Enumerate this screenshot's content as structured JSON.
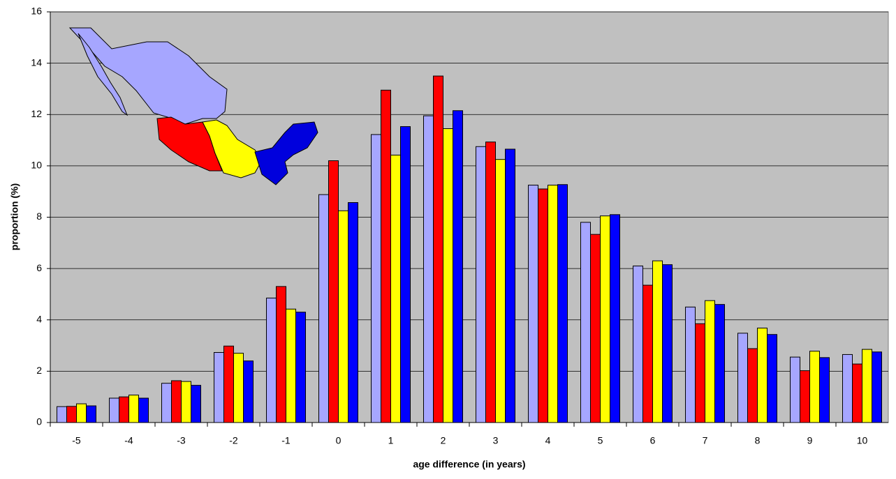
{
  "chart_data": {
    "type": "bar",
    "xlabel": "age difference (in years)",
    "ylabel": "proportion (%)",
    "categories": [
      "-5",
      "-4",
      "-3",
      "-2",
      "-1",
      "0",
      "1",
      "2",
      "3",
      "4",
      "5",
      "6",
      "7",
      "8",
      "9",
      "10"
    ],
    "series": [
      {
        "color": "#a6a6ff",
        "values": [
          0.62,
          0.95,
          1.53,
          2.73,
          4.85,
          8.88,
          11.22,
          11.95,
          10.75,
          9.25,
          7.8,
          6.1,
          4.5,
          3.48,
          2.55,
          2.65
        ]
      },
      {
        "color": "#ff0000",
        "values": [
          0.63,
          1.0,
          1.63,
          2.98,
          5.3,
          10.2,
          12.95,
          13.5,
          10.93,
          9.1,
          7.33,
          5.35,
          3.85,
          2.88,
          2.02,
          2.28
        ]
      },
      {
        "color": "#ffff00",
        "values": [
          0.73,
          1.07,
          1.6,
          2.7,
          4.42,
          8.25,
          10.42,
          11.45,
          10.25,
          9.25,
          8.05,
          6.3,
          4.75,
          3.68,
          2.78,
          2.85
        ]
      },
      {
        "color": "#0000ff",
        "values": [
          0.65,
          0.95,
          1.45,
          2.4,
          4.3,
          8.57,
          11.53,
          12.15,
          10.65,
          9.27,
          8.1,
          6.15,
          4.6,
          3.43,
          2.53,
          2.75
        ]
      }
    ],
    "ylim": [
      0,
      16
    ],
    "yticks": [
      0,
      2,
      4,
      6,
      8,
      10,
      12,
      14,
      16
    ],
    "grid": true
  }
}
